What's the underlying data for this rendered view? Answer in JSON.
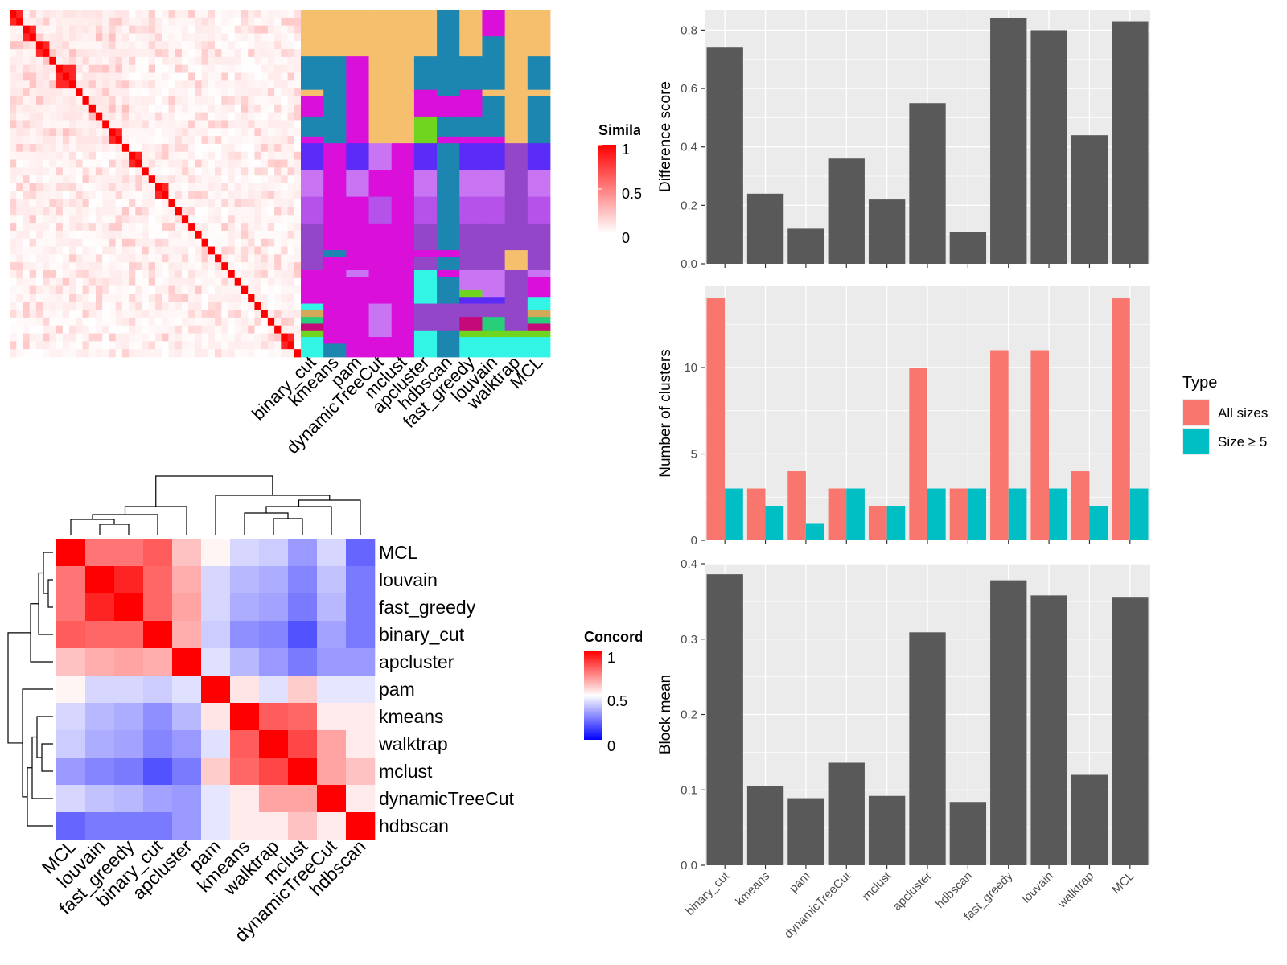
{
  "chart_data": [
    {
      "type": "heatmap",
      "legend_title": "Similarity",
      "legend_ticks": [
        "0",
        "0.5",
        "1"
      ],
      "range": [
        0,
        1
      ],
      "matrix_size": 44,
      "cluster_columns": [
        "binary_cut",
        "kmeans",
        "pam",
        "dynamicTreeCut",
        "mclust",
        "apcluster",
        "hdbscan",
        "fast_greedy",
        "louvain",
        "walktrap",
        "MCL"
      ],
      "assignment_palette": [
        "#F6BF6E",
        "#1C86B0",
        "#DA0FDA",
        "#5B2BF7",
        "#C974F3",
        "#B552E9",
        "#9446C8",
        "#33F5E5",
        "#D1A958",
        "#28CF7A",
        "#6FD51E",
        "#C5087A"
      ],
      "row_blocks": [
        {
          "rows": 4,
          "colors": [
            0,
            0,
            0,
            0,
            0,
            0,
            1,
            0,
            2,
            0,
            0
          ]
        },
        {
          "rows": 3,
          "colors": [
            0,
            0,
            0,
            0,
            0,
            0,
            1,
            0,
            1,
            0,
            0
          ]
        },
        {
          "rows": 5,
          "colors": [
            1,
            1,
            2,
            0,
            0,
            1,
            1,
            1,
            1,
            0,
            1
          ]
        },
        {
          "rows": 1,
          "colors": [
            0,
            1,
            2,
            0,
            0,
            2,
            1,
            2,
            0,
            0,
            0
          ]
        },
        {
          "rows": 3,
          "colors": [
            2,
            1,
            2,
            0,
            0,
            2,
            2,
            2,
            1,
            0,
            1
          ]
        },
        {
          "rows": 3,
          "colors": [
            1,
            1,
            2,
            0,
            0,
            10,
            1,
            1,
            1,
            0,
            1
          ]
        },
        {
          "rows": 1,
          "colors": [
            2,
            1,
            2,
            0,
            0,
            10,
            2,
            2,
            2,
            0,
            1
          ]
        },
        {
          "rows": 4,
          "colors": [
            3,
            2,
            3,
            4,
            2,
            3,
            1,
            3,
            3,
            6,
            3
          ]
        },
        {
          "rows": 4,
          "colors": [
            4,
            2,
            4,
            2,
            2,
            4,
            1,
            4,
            4,
            6,
            4
          ]
        },
        {
          "rows": 4,
          "colors": [
            5,
            2,
            2,
            5,
            2,
            5,
            1,
            5,
            5,
            6,
            5
          ]
        },
        {
          "rows": 4,
          "colors": [
            6,
            2,
            2,
            2,
            2,
            6,
            1,
            6,
            6,
            6,
            6
          ]
        },
        {
          "rows": 1,
          "colors": [
            6,
            1,
            2,
            2,
            2,
            2,
            2,
            6,
            6,
            0,
            6
          ]
        },
        {
          "rows": 2,
          "colors": [
            6,
            2,
            2,
            2,
            2,
            6,
            1,
            6,
            6,
            0,
            6
          ]
        },
        {
          "rows": 1,
          "colors": [
            2,
            2,
            4,
            2,
            2,
            7,
            2,
            4,
            4,
            6,
            4
          ]
        },
        {
          "rows": 2,
          "colors": [
            2,
            2,
            2,
            2,
            2,
            7,
            1,
            4,
            4,
            6,
            2
          ]
        },
        {
          "rows": 1,
          "colors": [
            2,
            2,
            2,
            2,
            2,
            7,
            1,
            10,
            4,
            6,
            2
          ]
        },
        {
          "rows": 1,
          "colors": [
            2,
            2,
            2,
            2,
            2,
            7,
            1,
            3,
            3,
            6,
            7
          ]
        },
        {
          "rows": 1,
          "colors": [
            7,
            2,
            2,
            4,
            2,
            6,
            6,
            6,
            6,
            6,
            7
          ]
        },
        {
          "rows": 1,
          "colors": [
            8,
            2,
            2,
            4,
            2,
            6,
            6,
            6,
            6,
            6,
            8
          ]
        },
        {
          "rows": 1,
          "colors": [
            9,
            2,
            2,
            4,
            2,
            6,
            6,
            11,
            9,
            6,
            9
          ]
        },
        {
          "rows": 1,
          "colors": [
            11,
            2,
            2,
            4,
            2,
            6,
            6,
            11,
            9,
            6,
            11
          ]
        },
        {
          "rows": 1,
          "colors": [
            10,
            2,
            2,
            4,
            2,
            7,
            1,
            10,
            10,
            10,
            10
          ]
        },
        {
          "rows": 1,
          "colors": [
            7,
            2,
            2,
            2,
            2,
            7,
            1,
            7,
            7,
            7,
            7
          ]
        },
        {
          "rows": 2,
          "colors": [
            7,
            1,
            2,
            2,
            2,
            7,
            1,
            7,
            7,
            7,
            7
          ]
        }
      ]
    },
    {
      "type": "heatmap",
      "legend_title": "Concordance",
      "legend_ticks": [
        "0",
        "0.5",
        "1"
      ],
      "range": [
        0,
        1
      ],
      "row_labels": [
        "MCL",
        "louvain",
        "fast_greedy",
        "binary_cut",
        "apcluster",
        "pam",
        "kmeans",
        "walktrap",
        "mclust",
        "dynamicTreeCut",
        "hdbscan"
      ],
      "col_labels": [
        "MCL",
        "louvain",
        "fast_greedy",
        "binary_cut",
        "apcluster",
        "pam",
        "kmeans",
        "walktrap",
        "mclust",
        "dynamicTreeCut",
        "hdbscan"
      ],
      "values": [
        [
          1.0,
          0.77,
          0.77,
          0.82,
          0.62,
          0.52,
          0.42,
          0.4,
          0.3,
          0.42,
          0.2
        ],
        [
          0.77,
          1.0,
          0.93,
          0.8,
          0.66,
          0.42,
          0.36,
          0.34,
          0.26,
          0.38,
          0.24
        ],
        [
          0.77,
          0.93,
          1.0,
          0.8,
          0.68,
          0.42,
          0.34,
          0.32,
          0.24,
          0.36,
          0.24
        ],
        [
          0.82,
          0.8,
          0.8,
          1.0,
          0.66,
          0.4,
          0.28,
          0.26,
          0.16,
          0.32,
          0.24
        ],
        [
          0.62,
          0.66,
          0.68,
          0.66,
          1.0,
          0.44,
          0.36,
          0.3,
          0.24,
          0.3,
          0.3
        ],
        [
          0.52,
          0.42,
          0.42,
          0.4,
          0.44,
          1.0,
          0.55,
          0.44,
          0.6,
          0.45,
          0.45
        ],
        [
          0.42,
          0.36,
          0.34,
          0.28,
          0.36,
          0.55,
          1.0,
          0.82,
          0.8,
          0.54,
          0.54
        ],
        [
          0.4,
          0.34,
          0.32,
          0.26,
          0.3,
          0.44,
          0.82,
          1.0,
          0.86,
          0.68,
          0.54
        ],
        [
          0.3,
          0.26,
          0.24,
          0.16,
          0.24,
          0.6,
          0.8,
          0.86,
          1.0,
          0.68,
          0.62
        ],
        [
          0.42,
          0.38,
          0.36,
          0.32,
          0.3,
          0.45,
          0.54,
          0.68,
          0.68,
          1.0,
          0.54
        ],
        [
          0.2,
          0.24,
          0.24,
          0.24,
          0.3,
          0.45,
          0.54,
          0.54,
          0.62,
          0.54,
          1.0
        ]
      ]
    },
    {
      "type": "bar",
      "categories": [
        "binary_cut",
        "kmeans",
        "pam",
        "dynamicTreeCut",
        "mclust",
        "apcluster",
        "hdbscan",
        "fast_greedy",
        "louvain",
        "walktrap",
        "MCL"
      ],
      "values": [
        0.74,
        0.24,
        0.12,
        0.36,
        0.22,
        0.55,
        0.11,
        0.84,
        0.8,
        0.44,
        0.83
      ],
      "ylabel": "Difference score",
      "ylim": [
        0,
        0.87
      ],
      "yticks": [
        "0.0",
        "0.2",
        "0.4",
        "0.6",
        "0.8"
      ],
      "grid": true
    },
    {
      "type": "bar",
      "categories": [
        "binary_cut",
        "kmeans",
        "pam",
        "dynamicTreeCut",
        "mclust",
        "apcluster",
        "hdbscan",
        "fast_greedy",
        "louvain",
        "walktrap",
        "MCL"
      ],
      "series": [
        {
          "name": "All sizes",
          "values": [
            14,
            3,
            4,
            3,
            2,
            10,
            3,
            11,
            11,
            4,
            14
          ]
        },
        {
          "name": "Size ≥ 5",
          "values": [
            3,
            2,
            1,
            3,
            2,
            3,
            3,
            3,
            3,
            2,
            3
          ]
        }
      ],
      "ylabel": "Number of clusters",
      "ylim": [
        0,
        14.7
      ],
      "yticks": [
        "0",
        "5",
        "10"
      ],
      "legend_title": "Type",
      "legend_position": "right",
      "grid": true
    },
    {
      "type": "bar",
      "categories": [
        "binary_cut",
        "kmeans",
        "pam",
        "dynamicTreeCut",
        "mclust",
        "apcluster",
        "hdbscan",
        "fast_greedy",
        "louvain",
        "walktrap",
        "MCL"
      ],
      "values": [
        0.386,
        0.105,
        0.089,
        0.136,
        0.092,
        0.309,
        0.084,
        0.378,
        0.358,
        0.12,
        0.355
      ],
      "ylabel": "Block mean",
      "ylim": [
        0,
        0.4
      ],
      "yticks": [
        "0.0",
        "0.1",
        "0.2",
        "0.3",
        "0.4"
      ],
      "grid": true
    }
  ],
  "colors": {
    "bar_fill": "#595959",
    "panel_background": "#EBEBEB",
    "gridline": "#FFFFFF",
    "series_all_sizes": "#F8766D",
    "series_size_ge_5": "#00BFC4",
    "heat_high": "#FF0000",
    "heat_low": "#0000FF"
  }
}
